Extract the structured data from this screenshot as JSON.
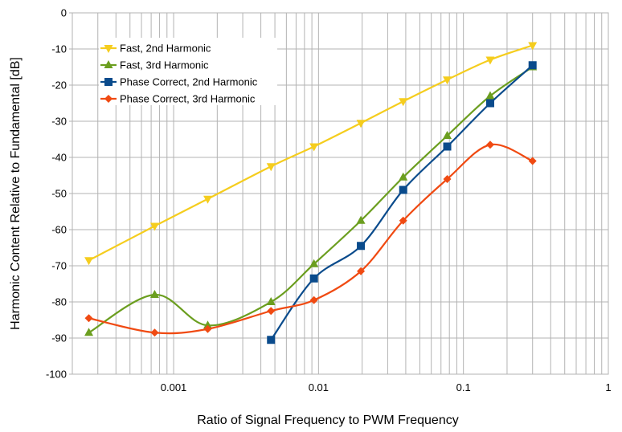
{
  "chart_data": {
    "type": "line",
    "title": "",
    "xlabel": "Ratio of Signal Frequency to PWM Frequency",
    "ylabel": "Harmonic Content Relative to Fundamental  [dB]",
    "xscale": "log",
    "xlim": [
      0.0002,
      1
    ],
    "ylim": [
      -100,
      0
    ],
    "grid": true,
    "legend_position": "top-left",
    "x_ticks": [
      {
        "value": 0.001,
        "label": "0.001"
      },
      {
        "value": 0.01,
        "label": "0.01"
      },
      {
        "value": 0.1,
        "label": "0.1"
      },
      {
        "value": 1,
        "label": "1"
      }
    ],
    "y_ticks": [
      {
        "value": 0,
        "label": "0"
      },
      {
        "value": -10,
        "label": "-10"
      },
      {
        "value": -20,
        "label": "-20"
      },
      {
        "value": -30,
        "label": "-30"
      },
      {
        "value": -40,
        "label": "-40"
      },
      {
        "value": -50,
        "label": "-50"
      },
      {
        "value": -60,
        "label": "-60"
      },
      {
        "value": -70,
        "label": "-70"
      },
      {
        "value": -80,
        "label": "-80"
      },
      {
        "value": -90,
        "label": "-90"
      },
      {
        "value": -100,
        "label": "-100"
      }
    ],
    "series": [
      {
        "name": "Fast, 2nd Harmonic",
        "color": "#f5cd1e",
        "marker": "triangle-down",
        "x": [
          0.00026,
          0.00074,
          0.00172,
          0.0047,
          0.0093,
          0.0196,
          0.0384,
          0.0773,
          0.153,
          0.3
        ],
        "y": [
          -68.5,
          -59,
          -51.5,
          -42.5,
          -37,
          -30.5,
          -24.5,
          -18.5,
          -13,
          -9
        ]
      },
      {
        "name": "Fast, 3rd Harmonic",
        "color": "#6b9e1f",
        "marker": "triangle-up",
        "x": [
          0.00026,
          0.00074,
          0.00172,
          0.0047,
          0.0093,
          0.0196,
          0.0384,
          0.0773,
          0.153,
          0.3
        ],
        "y": [
          -88.5,
          -78,
          -86.5,
          -80,
          -69.5,
          -57.5,
          -45.5,
          -34,
          -23,
          -15
        ]
      },
      {
        "name": "Phase Correct, 2nd Harmonic",
        "color": "#0a4b8c",
        "marker": "square",
        "x": [
          0.0047,
          0.0093,
          0.0196,
          0.0384,
          0.0773,
          0.153,
          0.3
        ],
        "y": [
          -90.5,
          -73.5,
          -64.5,
          -49,
          -37,
          -25,
          -14.5
        ]
      },
      {
        "name": "Phase Correct, 3rd Harmonic",
        "color": "#f04a12",
        "marker": "diamond",
        "x": [
          0.00026,
          0.00074,
          0.00172,
          0.0047,
          0.0093,
          0.0196,
          0.0384,
          0.0773,
          0.153,
          0.3
        ],
        "y": [
          -84.5,
          -88.5,
          -87.5,
          -82.5,
          -79.5,
          -71.5,
          -57.5,
          -46,
          -36.5,
          -41
        ]
      }
    ]
  }
}
